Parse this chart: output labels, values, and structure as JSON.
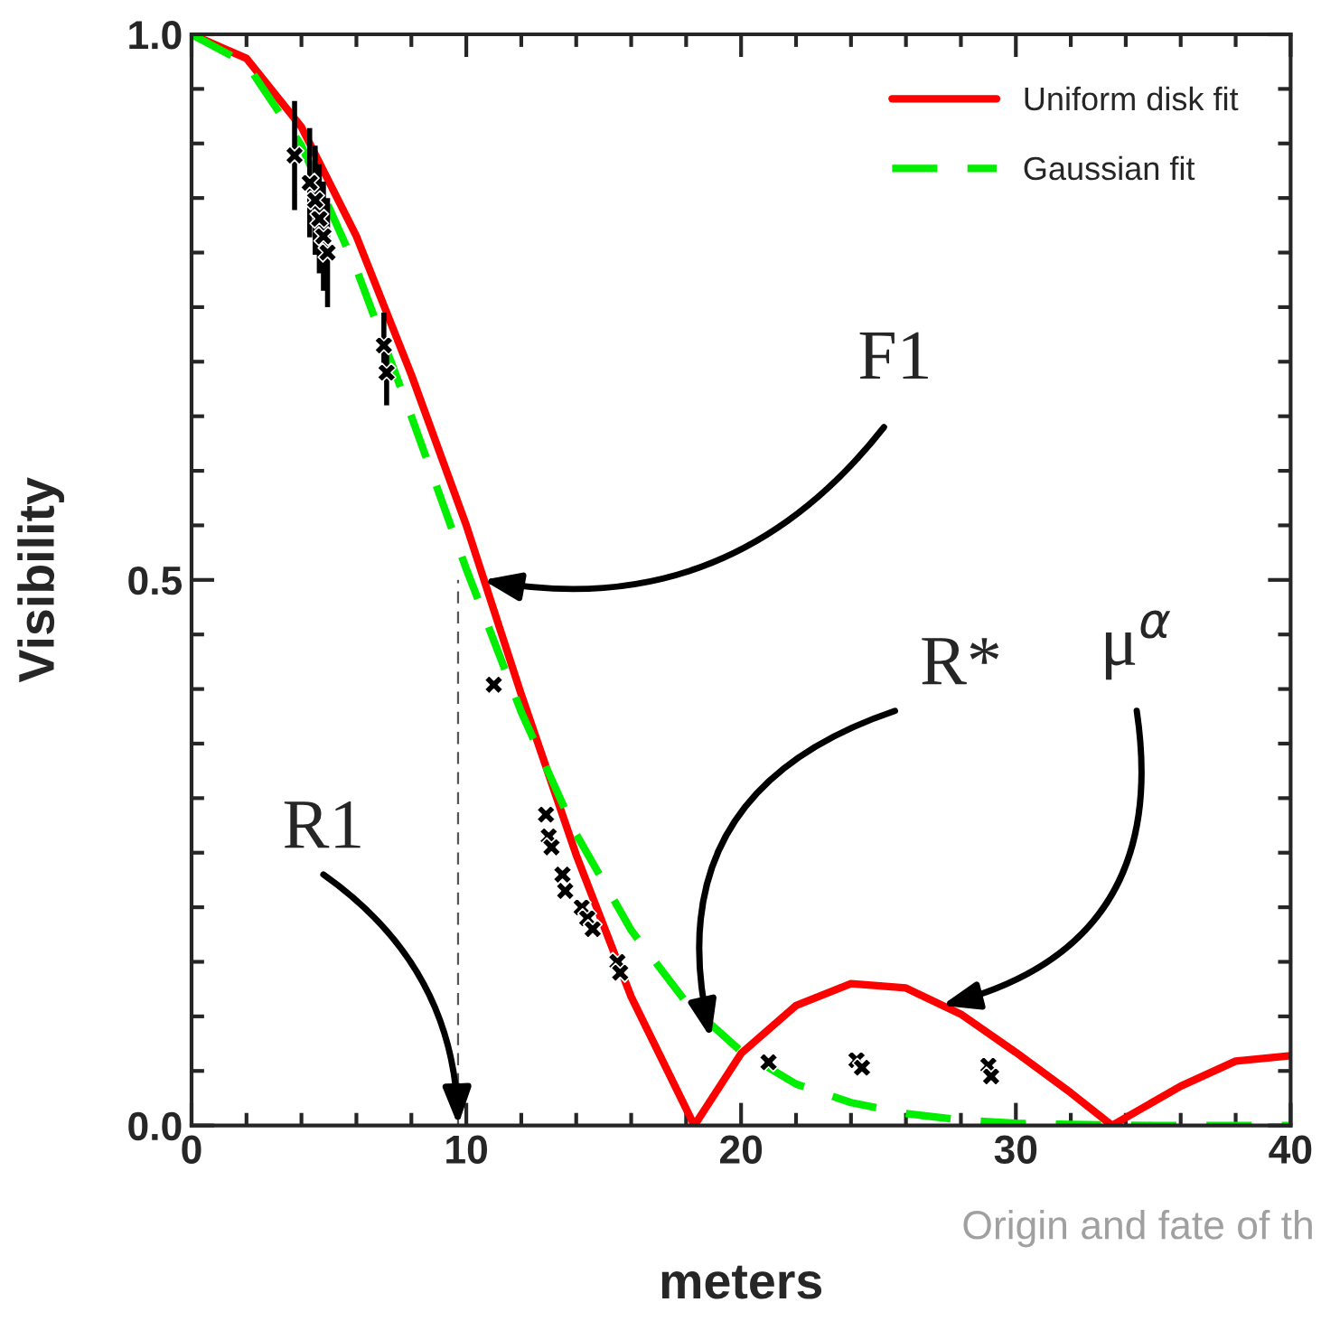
{
  "chart_data": {
    "type": "line",
    "xlabel": "meters",
    "ylabel": "Visibility",
    "xlim": [
      0,
      40
    ],
    "ylim": [
      0,
      1
    ],
    "xticks": [
      0,
      10,
      20,
      30,
      40
    ],
    "yticks": [
      {
        "value": 0,
        "label": "0.0"
      },
      {
        "value": 0.5,
        "label": "0.5"
      },
      {
        "value": 1,
        "label": "1.0"
      }
    ],
    "legend": "top right",
    "grid": false,
    "series": [
      {
        "name": "Uniform disk fit",
        "color": "#ff0000",
        "line_style": "solid",
        "x": [
          0,
          2,
          4,
          6,
          8,
          10,
          12,
          14,
          16,
          18.3,
          20,
          22,
          24,
          26,
          28,
          30,
          32,
          33.5,
          36,
          38,
          40
        ],
        "values": [
          1,
          0.978,
          0.915,
          0.815,
          0.688,
          0.55,
          0.395,
          0.248,
          0.118,
          0,
          0.066,
          0.11,
          0.13,
          0.126,
          0.102,
          0.067,
          0.03,
          0,
          0.036,
          0.059,
          0.064
        ]
      },
      {
        "name": "Gaussian fit",
        "color": "#00ee00",
        "line_style": "dashed",
        "x": [
          0,
          2,
          4,
          6,
          8,
          10,
          12,
          14,
          16,
          18,
          20,
          22,
          24,
          26,
          28,
          30,
          32,
          35,
          40
        ],
        "values": [
          1,
          0.973,
          0.898,
          0.785,
          0.65,
          0.51,
          0.379,
          0.267,
          0.179,
          0.113,
          0.068,
          0.038,
          0.021,
          0.011,
          0.005,
          0.002,
          0.001,
          0,
          0
        ]
      },
      {
        "type": "scatter",
        "color": "#000000",
        "marker": "cross",
        "x": [
          3.75,
          4.3,
          4.5,
          4.65,
          4.8,
          4.95,
          7,
          7.1,
          11,
          12.9,
          13.0,
          13.1,
          13.5,
          13.6,
          14.2,
          14.4,
          14.6,
          15.5,
          15.6,
          21,
          24.2,
          24.4,
          29,
          29.1
        ],
        "values": [
          0.889,
          0.864,
          0.848,
          0.831,
          0.815,
          0.8,
          0.715,
          0.69,
          0.404,
          0.285,
          0.265,
          0.255,
          0.23,
          0.215,
          0.2,
          0.19,
          0.18,
          0.15,
          0.14,
          0.058,
          0.06,
          0.053,
          0.055,
          0.045
        ],
        "errors": [
          0.05,
          0.05,
          0.05,
          0.05,
          0.05,
          0.05,
          0.03,
          0.03,
          null,
          null,
          null,
          null,
          null,
          null,
          null,
          null,
          null,
          null,
          null,
          null,
          null,
          null,
          null,
          null
        ]
      }
    ],
    "ref_lines": [
      {
        "axis": "x",
        "value": 9.7,
        "color": "#555555",
        "line_style": "dashed"
      }
    ],
    "annotations": [
      {
        "text": "F1",
        "x": 10.6,
        "y": 0.5
      },
      {
        "text": "R*",
        "x": 18.9,
        "y": 0.08
      },
      {
        "text": "μ$^{α}$",
        "x": 27.3,
        "y": 0.11
      },
      {
        "text": "R1",
        "x": 9.7,
        "y": 0
      },
      "Origin and fate of th"
    ]
  }
}
